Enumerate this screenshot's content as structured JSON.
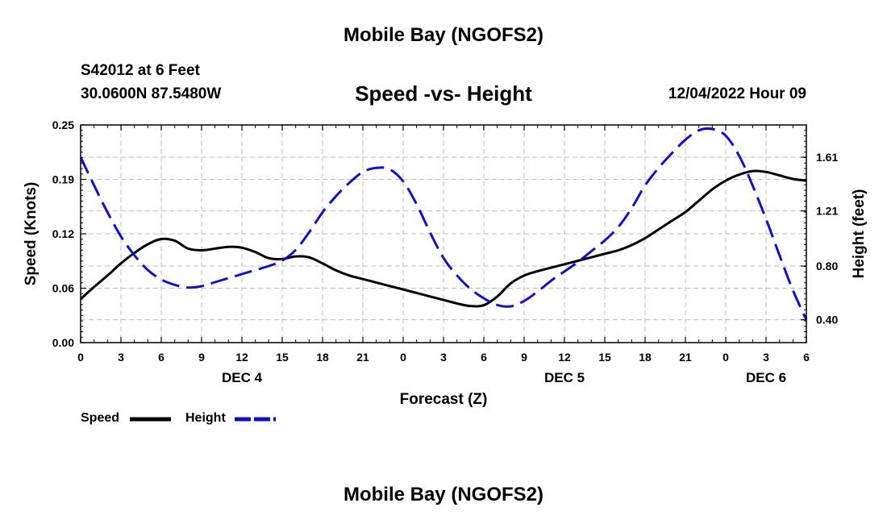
{
  "header": {
    "title": "Mobile Bay (NGOFS2)",
    "station": "S42012 at 6 Feet",
    "coords": "30.0600N  87.5480W",
    "subtitle": "Speed -vs- Height",
    "datetime": "12/04/2022 Hour 09"
  },
  "footer": {
    "title": "Mobile Bay (NGOFS2)"
  },
  "legend": {
    "speed_label": "Speed",
    "height_label": "Height"
  },
  "chart_data": {
    "type": "line",
    "xlabel": "Forecast (Z)",
    "ylabel": "Speed (Knots)",
    "y2label": "Height (feet)",
    "x_tick_labels": [
      "0",
      "3",
      "6",
      "9",
      "12",
      "15",
      "18",
      "21",
      "0",
      "3",
      "6",
      "9",
      "12",
      "15",
      "18",
      "21",
      "0",
      "3",
      "6"
    ],
    "date_labels": [
      {
        "label": "DEC 4",
        "at_hour": 12
      },
      {
        "label": "DEC 5",
        "at_hour": 36
      },
      {
        "label": "DEC 6",
        "at_hour": 51
      }
    ],
    "xlim": [
      0,
      54
    ],
    "ylim": [
      0,
      0.25
    ],
    "y_ticks": [
      "0.00",
      "0.06",
      "0.12",
      "0.19",
      "0.25"
    ],
    "y_tick_values": [
      0,
      0.0625,
      0.125,
      0.1875,
      0.25
    ],
    "y2lim": [
      0.23,
      1.85
    ],
    "y2_ticks": [
      "0.40",
      "0.80",
      "1.21",
      "1.61"
    ],
    "y2_tick_values": [
      0.4,
      0.8,
      1.21,
      1.61
    ],
    "grid": true,
    "series": [
      {
        "name": "Speed",
        "axis": "left",
        "color": "#000000",
        "style": "solid",
        "x": [
          0,
          1,
          2,
          3,
          4,
          5,
          6,
          7,
          8,
          9,
          10,
          11,
          12,
          13,
          14,
          15,
          16,
          17,
          18,
          19,
          20,
          21,
          22,
          23,
          24,
          25,
          26,
          27,
          28,
          29,
          30,
          31,
          32,
          33,
          34,
          35,
          36,
          37,
          38,
          39,
          40,
          41,
          42,
          43,
          44,
          45,
          46,
          47,
          48,
          49,
          50,
          51,
          52,
          53,
          54
        ],
        "values": [
          0.05,
          0.064,
          0.077,
          0.091,
          0.103,
          0.113,
          0.119,
          0.117,
          0.108,
          0.106,
          0.108,
          0.11,
          0.109,
          0.104,
          0.097,
          0.096,
          0.099,
          0.098,
          0.091,
          0.083,
          0.077,
          0.073,
          0.069,
          0.065,
          0.061,
          0.057,
          0.053,
          0.049,
          0.045,
          0.042,
          0.043,
          0.053,
          0.068,
          0.077,
          0.082,
          0.086,
          0.09,
          0.094,
          0.098,
          0.102,
          0.106,
          0.112,
          0.12,
          0.13,
          0.14,
          0.15,
          0.163,
          0.176,
          0.186,
          0.193,
          0.197,
          0.196,
          0.192,
          0.188,
          0.186
        ]
      },
      {
        "name": "Height",
        "axis": "right",
        "color": "#1010c8",
        "style": "dashed",
        "x": [
          0,
          1,
          2,
          3,
          4,
          5,
          6,
          7,
          8,
          9,
          10,
          11,
          12,
          13,
          14,
          15,
          16,
          17,
          18,
          19,
          20,
          21,
          22,
          23,
          24,
          25,
          26,
          27,
          28,
          29,
          30,
          31,
          32,
          33,
          34,
          35,
          36,
          37,
          38,
          39,
          40,
          41,
          42,
          43,
          44,
          45,
          46,
          47,
          48,
          49,
          50,
          51,
          52,
          53,
          54
        ],
        "values": [
          1.61,
          1.4,
          1.2,
          1.02,
          0.88,
          0.77,
          0.7,
          0.66,
          0.64,
          0.65,
          0.68,
          0.71,
          0.74,
          0.77,
          0.8,
          0.84,
          0.92,
          1.05,
          1.2,
          1.32,
          1.42,
          1.5,
          1.53,
          1.52,
          1.43,
          1.26,
          1.05,
          0.86,
          0.73,
          0.63,
          0.56,
          0.51,
          0.5,
          0.54,
          0.61,
          0.69,
          0.76,
          0.83,
          0.91,
          0.99,
          1.09,
          1.23,
          1.4,
          1.53,
          1.64,
          1.74,
          1.81,
          1.82,
          1.77,
          1.62,
          1.4,
          1.15,
          0.88,
          0.62,
          0.4
        ]
      }
    ]
  }
}
